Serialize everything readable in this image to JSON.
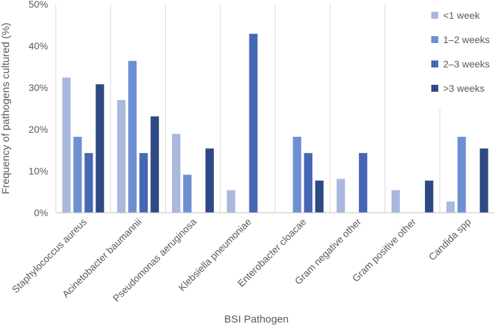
{
  "chart_data": {
    "type": "bar",
    "title": "",
    "xlabel": "BSI Pathogen",
    "ylabel": "Frequency of pathogens cultured (%)",
    "ylim": [
      0,
      50
    ],
    "yticks": [
      0,
      10,
      20,
      30,
      40,
      50
    ],
    "ytick_labels": [
      "0%",
      "10%",
      "20%",
      "30%",
      "40%",
      "50%"
    ],
    "grid": "vertical category separators",
    "legend_position": "top-right",
    "categories": [
      "Staphylococcus aureus",
      "Acinetobacter baumannii",
      "Pseudomonas aeruginosa",
      "Klebsiella pneumoniae",
      "Enterobacter cloacae",
      "Gram negative other",
      "Gram positive other",
      "Candida spp"
    ],
    "series": [
      {
        "name": "<1 week",
        "color": "#a9b8dd",
        "values": [
          32.4,
          27.0,
          18.9,
          5.4,
          0,
          8.1,
          5.4,
          2.7
        ]
      },
      {
        "name": "1–2 weeks",
        "color": "#6e8fd2",
        "values": [
          18.2,
          36.4,
          9.1,
          0,
          18.2,
          0,
          0,
          18.2
        ]
      },
      {
        "name": "2–3 weeks",
        "color": "#4567b4",
        "values": [
          14.3,
          14.3,
          0,
          42.9,
          14.3,
          14.3,
          0,
          0
        ]
      },
      {
        "name": ">3 weeks",
        "color": "#2e4a84",
        "values": [
          30.8,
          23.1,
          15.4,
          0,
          7.7,
          0,
          7.7,
          15.4
        ]
      }
    ]
  }
}
